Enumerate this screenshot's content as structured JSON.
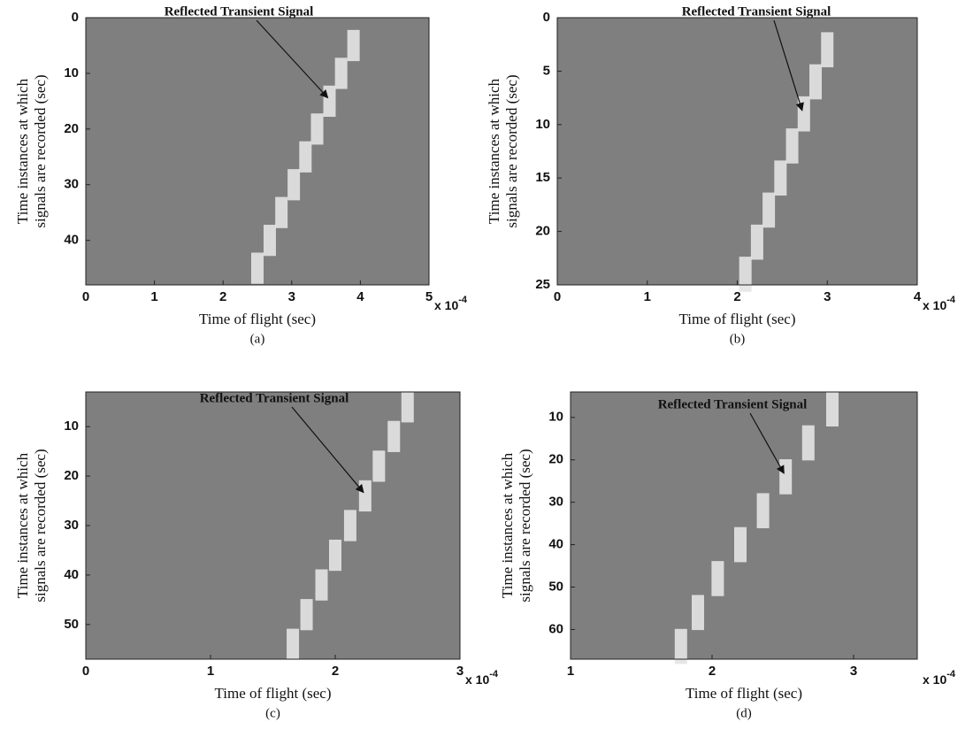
{
  "chart_data": [
    {
      "type": "heatmap",
      "annotation": "Reflected Transient Signal",
      "x_label": "Time of flight (sec)",
      "y_label": [
        "Time instances at which",
        "signals are recorded (sec)"
      ],
      "caption": "(a)",
      "x_multiplier": "x 10",
      "x_multiplier_exp": "-4",
      "background": "#7f7f7f",
      "y_inverted": true,
      "xlim": [
        0,
        5
      ],
      "xticks": [
        0,
        1,
        2,
        3,
        4,
        5
      ],
      "ylim": [
        0,
        48
      ],
      "yticks": [
        0,
        10,
        20,
        30,
        40
      ],
      "series": [
        {
          "color": "#e4e4e4",
          "x": [
            3.9,
            3.72,
            3.55,
            3.37,
            3.2,
            3.03,
            2.85,
            2.68,
            2.5
          ],
          "values": [
            5,
            10,
            15,
            20,
            25,
            30,
            35,
            40,
            45
          ]
        }
      ]
    },
    {
      "type": "heatmap",
      "annotation": "Reflected Transient Signal",
      "x_label": "Time of flight (sec)",
      "y_label": [
        "Time instances at which",
        "signals are recorded (sec)"
      ],
      "caption": "(b)",
      "x_multiplier": "x 10",
      "x_multiplier_exp": "-4",
      "background": "#7f7f7f",
      "y_inverted": true,
      "xlim": [
        0,
        4
      ],
      "xticks": [
        0,
        1,
        2,
        3,
        4
      ],
      "ylim": [
        0,
        25
      ],
      "yticks": [
        0,
        5,
        10,
        15,
        20,
        25
      ],
      "series": [
        {
          "color": "#e4e4e4",
          "x": [
            3.0,
            2.87,
            2.74,
            2.61,
            2.48,
            2.35,
            2.22,
            2.09
          ],
          "values": [
            3,
            6,
            9,
            12,
            15,
            18,
            21,
            24
          ]
        }
      ]
    },
    {
      "type": "heatmap",
      "annotation": "Reflected Transient Signal",
      "x_label": "Time of flight (sec)",
      "y_label": [
        "Time instances at which",
        "signals are recorded (sec)"
      ],
      "caption": "(c)",
      "x_multiplier": "x 10",
      "x_multiplier_exp": "-4",
      "background": "#7f7f7f",
      "y_inverted": true,
      "xlim": [
        0,
        3
      ],
      "xticks": [
        0,
        1,
        2,
        3
      ],
      "ylim": [
        3,
        57
      ],
      "yticks": [
        10,
        20,
        30,
        40,
        50
      ],
      "series": [
        {
          "color": "#e4e4e4",
          "x": [
            2.58,
            2.47,
            2.35,
            2.24,
            2.12,
            2.0,
            1.89,
            1.77,
            1.66
          ],
          "values": [
            6,
            12,
            18,
            24,
            30,
            36,
            42,
            48,
            54
          ]
        }
      ]
    },
    {
      "type": "heatmap",
      "annotation": "Reflected Transient Signal",
      "x_label": "Time of flight (sec)",
      "y_label": [
        "Time instances at which",
        "signals are recorded (sec)"
      ],
      "caption": "(d)",
      "x_multiplier": "x 10",
      "x_multiplier_exp": "-4",
      "background": "#7f7f7f",
      "y_inverted": true,
      "xlim": [
        1,
        3.45
      ],
      "xticks": [
        1,
        2,
        3
      ],
      "ylim": [
        4,
        67
      ],
      "yticks": [
        10,
        20,
        30,
        40,
        50,
        60
      ],
      "series": [
        {
          "color": "#e4e4e4",
          "x": [
            2.85,
            2.68,
            2.52,
            2.36,
            2.2,
            2.04,
            1.9,
            1.78
          ],
          "values": [
            8,
            16,
            24,
            32,
            40,
            48,
            56,
            64
          ]
        }
      ]
    }
  ]
}
